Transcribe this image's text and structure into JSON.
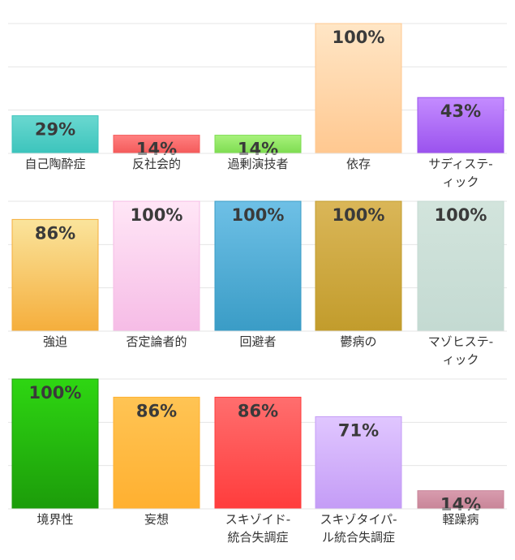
{
  "chart_data": {
    "type": "bar",
    "ylim": [
      0,
      100
    ],
    "grid": true,
    "legend": "none",
    "panels": [
      {
        "bars": [
          {
            "category": [
              "自己陶酔症"
            ],
            "value": 29,
            "label": "29%",
            "colors": [
              "#6ad8d0",
              "#3cc4bc"
            ]
          },
          {
            "category": [
              "反社会的"
            ],
            "value": 14,
            "label": "14%",
            "colors": [
              "#ff8080",
              "#f45a5a"
            ]
          },
          {
            "category": [
              "過剰演技者"
            ],
            "value": 14,
            "label": "14%",
            "colors": [
              "#a8f27c",
              "#7ddc50"
            ]
          },
          {
            "category": [
              "依存"
            ],
            "value": 100,
            "label": "100%",
            "colors": [
              "#ffe6c6",
              "#ffc890"
            ]
          },
          {
            "category": [
              "サディステ-",
              "ィック"
            ],
            "value": 43,
            "label": "43%",
            "colors": [
              "#c48cff",
              "#9a52ee"
            ]
          }
        ]
      },
      {
        "bars": [
          {
            "category": [
              "強迫"
            ],
            "value": 86,
            "label": "86%",
            "colors": [
              "#fae49c",
              "#f5ae3c"
            ]
          },
          {
            "category": [
              "否定論者的"
            ],
            "value": 100,
            "label": "100%",
            "colors": [
              "#ffe6f6",
              "#f6bce6"
            ]
          },
          {
            "category": [
              "回避者"
            ],
            "value": 100,
            "label": "100%",
            "colors": [
              "#6ec0e6",
              "#3a9cc6"
            ]
          },
          {
            "category": [
              "鬱病の"
            ],
            "value": 100,
            "label": "100%",
            "colors": [
              "#dab658",
              "#c29c2c"
            ]
          },
          {
            "category": [
              "マゾヒステ-",
              "ィック"
            ],
            "value": 100,
            "label": "100%",
            "colors": [
              "#d2e4dc",
              "#c4dad2"
            ]
          }
        ]
      },
      {
        "bars": [
          {
            "category": [
              "境界性"
            ],
            "value": 100,
            "label": "100%",
            "colors": [
              "#2ed612",
              "#1c9c0a"
            ]
          },
          {
            "category": [
              "妄想"
            ],
            "value": 86,
            "label": "86%",
            "colors": [
              "#ffc454",
              "#ffb030"
            ]
          },
          {
            "category": [
              "スキゾイド-",
              "統合失調症"
            ],
            "value": 86,
            "label": "86%",
            "colors": [
              "#ff6e6e",
              "#ff3c3c"
            ]
          },
          {
            "category": [
              "スキゾタイパ-",
              "ル統合失調症"
            ],
            "value": 71,
            "label": "71%",
            "colors": [
              "#e0c6ff",
              "#c49cf6"
            ]
          },
          {
            "category": [
              "軽躁病"
            ],
            "value": 14,
            "label": "14%",
            "colors": [
              "#d89cae",
              "#c88498"
            ]
          }
        ]
      }
    ]
  }
}
